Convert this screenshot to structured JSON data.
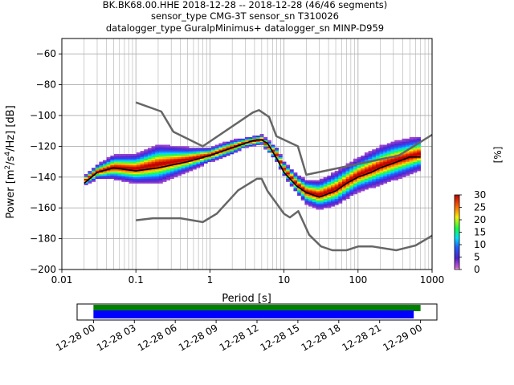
{
  "title": {
    "line1": "BK.BK68.00.HHE   2018-12-28 -- 2018-12-28  (46/46 segments)",
    "line2": "sensor_type CMG-3T sensor_sn T310026",
    "line3": "datalogger_type GuralpMinimus+ datalogger_sn MINP-D959"
  },
  "chart_data": [
    {
      "type": "heatmap",
      "xlabel": "Period [s]",
      "ylabel_parts": [
        "Power [m",
        "2",
        "/s",
        "4",
        "/Hz] [dB]"
      ],
      "x_scale": "log",
      "xlim": [
        0.01,
        1000
      ],
      "ylim": [
        -200,
        -50
      ],
      "x_ticks": [
        0.01,
        0.1,
        1,
        10,
        100,
        1000
      ],
      "x_tick_labels": [
        "0.01",
        "0.1",
        "1",
        "10",
        "100",
        "1000"
      ],
      "y_ticks": [
        -200,
        -180,
        -160,
        -140,
        -120,
        -100,
        -80,
        -60
      ],
      "y_tick_labels": [
        "−200",
        "−180",
        "−160",
        "−140",
        "−120",
        "−100",
        "−80",
        "−60"
      ],
      "grid": true,
      "colorbar": {
        "label": "[%]",
        "range": [
          0,
          30
        ],
        "ticks": [
          0,
          5,
          10,
          15,
          20,
          25,
          30
        ],
        "tick_labels": [
          "0",
          "5",
          "10",
          "15",
          "20",
          "25",
          "30"
        ],
        "colormap": "pqlx"
      },
      "psd_mode_curve": {
        "period": [
          0.02,
          0.03,
          0.05,
          0.1,
          0.2,
          0.5,
          1,
          2,
          3,
          4,
          5,
          6,
          8,
          10,
          15,
          20,
          30,
          50,
          70,
          100,
          150,
          200,
          300,
          500,
          700
        ],
        "power": [
          -144,
          -137,
          -134,
          -136,
          -134,
          -130,
          -126,
          -121,
          -118,
          -116,
          -116,
          -118,
          -128,
          -137,
          -146,
          -150,
          -153,
          -149,
          -144,
          -140,
          -137,
          -134,
          -131,
          -127,
          -127
        ]
      },
      "high_noise_model": {
        "period": [
          0.1,
          0.22,
          0.32,
          0.8,
          3.8,
          4.6,
          6.3,
          7.9,
          15.4,
          20,
          354.8,
          1000
        ],
        "power": [
          -91.5,
          -97.4,
          -110.5,
          -120.0,
          -98.0,
          -96.5,
          -101.0,
          -113.5,
          -120.0,
          -138.5,
          -126.0,
          -112.5
        ]
      },
      "low_noise_model": {
        "period": [
          0.1,
          0.17,
          0.4,
          0.8,
          1.24,
          2.4,
          4.3,
          5,
          6,
          10,
          12,
          15.6,
          21.9,
          31.6,
          45,
          70,
          101,
          154,
          328,
          600,
          1000
        ],
        "power": [
          -168.0,
          -166.7,
          -166.7,
          -169.2,
          -163.7,
          -148.6,
          -141.1,
          -141.1,
          -149.0,
          -163.8,
          -166.2,
          -162.1,
          -177.5,
          -185.0,
          -187.5,
          -187.5,
          -185.0,
          -185.0,
          -187.5,
          -184.4,
          -178.0
        ]
      },
      "distribution": [
        {
          "p": 0.02,
          "mode": -143,
          "spread": 2
        },
        {
          "p": 0.03,
          "mode": -137,
          "spread": 3
        },
        {
          "p": 0.05,
          "mode": -134,
          "spread": 5
        },
        {
          "p": 0.1,
          "mode": -135,
          "spread": 6
        },
        {
          "p": 0.2,
          "mode": -132,
          "spread": 8
        },
        {
          "p": 0.5,
          "mode": -129,
          "spread": 5
        },
        {
          "p": 1,
          "mode": -126,
          "spread": 3
        },
        {
          "p": 2,
          "mode": -121,
          "spread": 3
        },
        {
          "p": 3,
          "mode": -118,
          "spread": 2
        },
        {
          "p": 5,
          "mode": -116,
          "spread": 2
        },
        {
          "p": 8,
          "mode": -126,
          "spread": 3
        },
        {
          "p": 10,
          "mode": -135,
          "spread": 3
        },
        {
          "p": 15,
          "mode": -145,
          "spread": 4
        },
        {
          "p": 20,
          "mode": -150,
          "spread": 5
        },
        {
          "p": 30,
          "mode": -152,
          "spread": 6
        },
        {
          "p": 50,
          "mode": -148,
          "spread": 7
        },
        {
          "p": 100,
          "mode": -139,
          "spread": 7
        },
        {
          "p": 200,
          "mode": -133,
          "spread": 8
        },
        {
          "p": 300,
          "mode": -130,
          "spread": 8
        },
        {
          "p": 700,
          "mode": -125,
          "spread": 7
        }
      ]
    },
    {
      "type": "bar",
      "x_tick_labels": [
        "12-28 00",
        "12-28 03",
        "12-28 06",
        "12-28 09",
        "12-28 12",
        "12-28 15",
        "12-28 18",
        "12-28 21",
        "12-29 00"
      ],
      "x_ticks_hours": [
        0,
        3,
        6,
        9,
        12,
        15,
        18,
        21,
        24
      ],
      "xlim_hours": [
        -1.2,
        25.2
      ],
      "bars": [
        {
          "name": "data_available",
          "start_hour": 0,
          "end_hour": 24.0,
          "color": "#008000"
        },
        {
          "name": "psd_used",
          "start_hour": 0,
          "end_hour": 23.5,
          "color": "#0000ff"
        }
      ]
    }
  ],
  "colors": {
    "noise_model": "#666666",
    "mode_line": "#000000",
    "grid": "#b0b0b0"
  }
}
